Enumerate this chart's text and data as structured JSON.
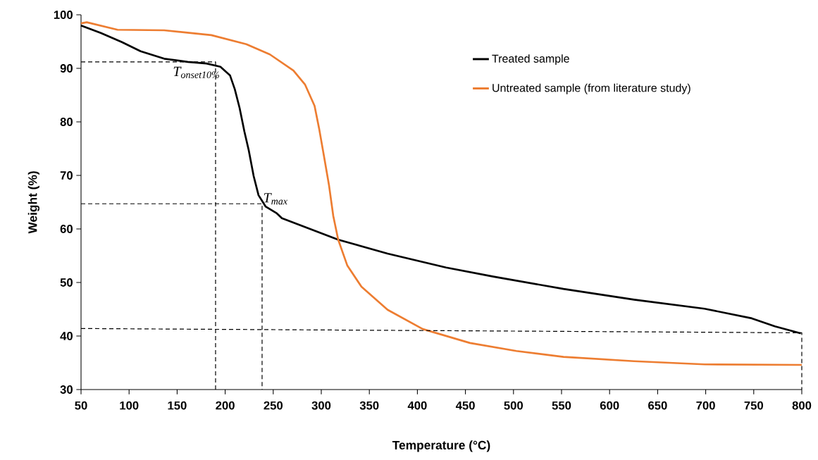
{
  "chart_data": {
    "type": "line",
    "xlabel": "Temperature (°C)",
    "ylabel": "Weight (%)",
    "xlim": [
      50,
      800
    ],
    "ylim": [
      30,
      100
    ],
    "xticks": [
      50,
      100,
      150,
      200,
      250,
      300,
      350,
      400,
      450,
      500,
      550,
      600,
      650,
      700,
      750,
      800
    ],
    "yticks": [
      30,
      40,
      50,
      60,
      70,
      80,
      90,
      100
    ],
    "grid": false,
    "legend": "top right",
    "series": [
      {
        "name": "Treated sample",
        "color": "#000000",
        "line_style": "solid",
        "x": [
          50,
          70.5,
          92.5,
          112,
          136.5,
          161,
          180.5,
          195,
          205,
          210,
          215,
          220,
          224.5,
          229.6,
          234.7,
          242,
          253.8,
          259,
          317.6,
          369,
          429.8,
          479,
          552,
          625.5,
          698.8,
          748,
          772,
          799
        ],
        "values": [
          98.0,
          96.6,
          94.9,
          93.2,
          91.8,
          91.2,
          90.9,
          90.3,
          88.7,
          86.1,
          82.6,
          78.2,
          74.7,
          69.9,
          66.3,
          64.2,
          62.9,
          62.0,
          58.0,
          55.4,
          52.8,
          51.1,
          48.8,
          46.8,
          45.1,
          43.3,
          41.8,
          40.5
        ]
      },
      {
        "name": "Untreated sample (from literature study)",
        "color": "#ed7d31",
        "line_style": "solid",
        "x": [
          50,
          56,
          88,
          136.5,
          185.6,
          222,
          246.5,
          271,
          283,
          293,
          297.8,
          303,
          308,
          312.5,
          317.6,
          327,
          341.8,
          369,
          405.6,
          454.7,
          503,
          552,
          625.5,
          698.8,
          800
        ],
        "values": [
          98.4,
          98.6,
          97.2,
          97.1,
          96.2,
          94.5,
          92.6,
          89.6,
          87.0,
          83.0,
          78.7,
          73.4,
          68.2,
          62.4,
          58.0,
          53.2,
          49.2,
          44.9,
          41.3,
          38.7,
          37.2,
          36.1,
          35.3,
          34.7,
          34.6
        ]
      },
      {
        "color": "#000000",
        "line_style": "dashed",
        "x": [
          50,
          190,
          190
        ],
        "values": [
          91.2,
          91.2,
          30
        ]
      },
      {
        "color": "#000000",
        "line_style": "dashed",
        "x": [
          50,
          238.4,
          238.4
        ],
        "values": [
          64.7,
          64.7,
          30
        ]
      },
      {
        "color": "#000000",
        "line_style": "dashed",
        "x": [
          50,
          800,
          800
        ],
        "values": [
          41.4,
          40.6,
          30
        ]
      }
    ],
    "annotations": [
      {
        "text": "T$_{onset10%}$",
        "x": 190,
        "y": 91.2
      },
      {
        "text": "T$_{max}$",
        "x": 238.4,
        "y": 64.7
      }
    ]
  }
}
